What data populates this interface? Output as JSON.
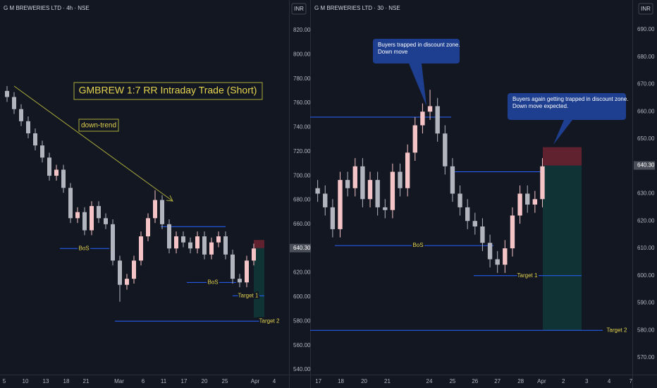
{
  "chart_data": [
    {
      "type": "candlestick",
      "title": "G M BREWERIES LTD · 4h · NSE",
      "currency": "INR",
      "x": [
        1,
        2,
        3,
        4,
        5,
        6,
        7,
        8,
        9,
        10,
        11,
        12,
        13,
        14,
        15,
        16,
        17,
        18,
        19,
        20,
        21,
        22,
        23,
        24,
        25,
        26,
        27,
        28,
        29,
        30,
        31,
        32,
        33,
        34,
        35,
        36
      ],
      "open": [
        770,
        765,
        755,
        745,
        735,
        725,
        715,
        700,
        705,
        690,
        665,
        670,
        655,
        675,
        665,
        660,
        630,
        610,
        615,
        630,
        650,
        665,
        680,
        660,
        640,
        650,
        645,
        640,
        650,
        635,
        645,
        650,
        635,
        615,
        612,
        630
      ],
      "high": [
        774,
        769,
        759,
        749,
        739,
        729,
        719,
        709,
        709,
        694,
        674,
        674,
        679,
        679,
        669,
        664,
        634,
        619,
        634,
        654,
        669,
        688,
        684,
        664,
        654,
        654,
        649,
        654,
        654,
        649,
        654,
        654,
        639,
        619,
        634,
        644
      ],
      "low": [
        761,
        751,
        741,
        731,
        721,
        711,
        696,
        696,
        686,
        661,
        661,
        651,
        651,
        661,
        656,
        626,
        596,
        606,
        611,
        626,
        646,
        661,
        656,
        636,
        636,
        641,
        636,
        636,
        631,
        631,
        641,
        631,
        611,
        608,
        608,
        626
      ],
      "close": [
        765,
        755,
        745,
        735,
        725,
        715,
        700,
        705,
        690,
        665,
        670,
        655,
        675,
        665,
        660,
        630,
        610,
        615,
        630,
        650,
        665,
        680,
        660,
        640,
        650,
        645,
        640,
        650,
        635,
        645,
        650,
        635,
        615,
        612,
        630,
        640
      ],
      "up_color": "#f4c4c6",
      "down_color": "#b2b5be",
      "xlim": [
        0,
        41
      ],
      "ylim": [
        540,
        820
      ],
      "xticks": [
        {
          "value": 0.6,
          "label": "5"
        },
        {
          "value": 3.6,
          "label": "10"
        },
        {
          "value": 6.5,
          "label": "13"
        },
        {
          "value": 9.4,
          "label": "18"
        },
        {
          "value": 12.2,
          "label": "21"
        },
        {
          "value": 16.9,
          "label": "Mar"
        },
        {
          "value": 20.3,
          "label": "6"
        },
        {
          "value": 23.2,
          "label": "11"
        },
        {
          "value": 26.1,
          "label": "17"
        },
        {
          "value": 29,
          "label": "20"
        },
        {
          "value": 31.9,
          "label": "25"
        },
        {
          "value": 36.2,
          "label": "Apr"
        },
        {
          "value": 38.9,
          "label": "4"
        }
      ],
      "yticks": [
        {
          "value": 540,
          "label": "540.00"
        },
        {
          "value": 560,
          "label": "560.00"
        },
        {
          "value": 580,
          "label": "580.00"
        },
        {
          "value": 600,
          "label": "600.00"
        },
        {
          "value": 620,
          "label": "620.00"
        },
        {
          "value": 640,
          "label": "640.00"
        },
        {
          "value": 660,
          "label": "660.00"
        },
        {
          "value": 680,
          "label": "680.00"
        },
        {
          "value": 700,
          "label": "700.00"
        },
        {
          "value": 720,
          "label": "720.00"
        },
        {
          "value": 740,
          "label": "740.00"
        },
        {
          "value": 760,
          "label": "760.00"
        },
        {
          "value": 780,
          "label": "780.00"
        },
        {
          "value": 800,
          "label": "800.00"
        },
        {
          "value": 820,
          "label": "820.00"
        }
      ],
      "last_price": {
        "value": 640.3,
        "label": "640.30"
      },
      "levels": [
        {
          "value": 640,
          "label": "BoS"
        },
        {
          "value": 658
        },
        {
          "value": 612,
          "label": "BoS"
        },
        {
          "value": 601,
          "label": "Target 1"
        },
        {
          "value": 580,
          "label": "Target 2"
        }
      ],
      "position": {
        "entry": 640.3,
        "stop": 647,
        "target": 583
      },
      "annotations": [
        {
          "text": "GMBREW 1:7 RR Intraday Trade (Short)"
        },
        {
          "text": "down-trend"
        }
      ]
    },
    {
      "type": "candlestick",
      "title": "G M BREWERIES LTD · 30 · NSE",
      "currency": "INR",
      "x": [
        1,
        2,
        3,
        4,
        5,
        6,
        7,
        8,
        9,
        10,
        11,
        12,
        13,
        14,
        15,
        16,
        17,
        18,
        19,
        20,
        21,
        22,
        23,
        24,
        25,
        26,
        27,
        28,
        29,
        30,
        31
      ],
      "open": [
        632,
        630,
        625,
        617,
        635,
        632,
        640,
        628,
        635,
        625,
        624,
        638,
        632,
        645,
        655,
        660,
        662,
        652,
        640,
        630,
        625,
        620,
        618,
        612,
        606,
        604,
        610,
        622,
        630,
        626,
        628
      ],
      "high": [
        635,
        633,
        628,
        638,
        638,
        643,
        643,
        638,
        638,
        628,
        641,
        641,
        648,
        658,
        663,
        668,
        665,
        655,
        643,
        633,
        628,
        623,
        621,
        615,
        609,
        613,
        625,
        633,
        633,
        631,
        643
      ],
      "low": [
        627,
        622,
        614,
        614,
        629,
        629,
        625,
        625,
        622,
        621,
        621,
        629,
        629,
        642,
        652,
        657,
        649,
        637,
        627,
        622,
        617,
        615,
        609,
        603,
        601,
        601,
        607,
        619,
        623,
        623,
        625
      ],
      "close": [
        630,
        625,
        617,
        635,
        632,
        640,
        628,
        635,
        625,
        624,
        638,
        632,
        645,
        655,
        660,
        662,
        652,
        640,
        630,
        625,
        620,
        618,
        612,
        606,
        604,
        610,
        622,
        630,
        626,
        628,
        640
      ],
      "up_color": "#f4c4c6",
      "down_color": "#b2b5be",
      "xlim": [
        0,
        43
      ],
      "ylim": [
        570,
        690
      ],
      "xticks": [
        {
          "value": 1.1,
          "label": "17"
        },
        {
          "value": 4.1,
          "label": "18"
        },
        {
          "value": 7.2,
          "label": "20"
        },
        {
          "value": 10.3,
          "label": "21"
        },
        {
          "value": 15.9,
          "label": "24"
        },
        {
          "value": 19,
          "label": "25"
        },
        {
          "value": 22,
          "label": "26"
        },
        {
          "value": 25,
          "label": "27"
        },
        {
          "value": 28.1,
          "label": "28"
        },
        {
          "value": 30.9,
          "label": "Apr"
        },
        {
          "value": 33.8,
          "label": "2"
        },
        {
          "value": 36.9,
          "label": "3"
        },
        {
          "value": 39.9,
          "label": "4"
        },
        {
          "value": 42.8,
          "label": "7"
        }
      ],
      "yticks": [
        {
          "value": 570,
          "label": "570.00"
        },
        {
          "value": 580,
          "label": "580.00"
        },
        {
          "value": 590,
          "label": "590.00"
        },
        {
          "value": 600,
          "label": "600.00"
        },
        {
          "value": 610,
          "label": "610.00"
        },
        {
          "value": 620,
          "label": "620.00"
        },
        {
          "value": 630,
          "label": "630.00"
        },
        {
          "value": 640,
          "label": "640.00"
        },
        {
          "value": 650,
          "label": "650.00"
        },
        {
          "value": 660,
          "label": "660.00"
        },
        {
          "value": 670,
          "label": "670.00"
        },
        {
          "value": 680,
          "label": "680.00"
        },
        {
          "value": 690,
          "label": "690.00"
        }
      ],
      "last_price": {
        "value": 640.3,
        "label": "640.30"
      },
      "levels": [
        {
          "value": 658
        },
        {
          "value": 638
        },
        {
          "value": 611,
          "label": "BoS"
        },
        {
          "value": 600,
          "label": "Target 1"
        },
        {
          "value": 580,
          "label": "Target 2"
        }
      ],
      "position": {
        "entry": 640.3,
        "stop": 647,
        "target": 580
      },
      "annotations": [
        {
          "lines": [
            "Buyers trapped in discount zone.",
            "Down move"
          ]
        },
        {
          "lines": [
            "Buyers again getting trapped in discount zone.",
            "Down move expected."
          ]
        }
      ]
    }
  ]
}
